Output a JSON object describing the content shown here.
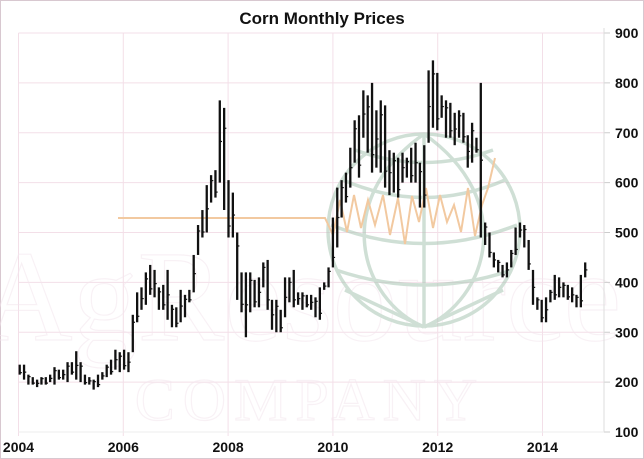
{
  "chart_data": {
    "type": "ohlc-bar",
    "title": "Corn Monthly Prices",
    "xlabel": "",
    "ylabel": "",
    "frequency": "monthly",
    "start": "2004-01",
    "x_ticks": [
      "2004",
      "2006",
      "2008",
      "2010",
      "2012",
      "2014"
    ],
    "x_range": [
      2004,
      2015.2
    ],
    "y_ticks": [
      "100",
      "200",
      "300",
      "400",
      "500",
      "600",
      "700",
      "800",
      "900"
    ],
    "ylim": [
      100,
      900
    ],
    "y_axis_side": "right",
    "grid": true,
    "high": [
      235,
      235,
      215,
      210,
      205,
      210,
      210,
      215,
      230,
      225,
      225,
      240,
      240,
      262,
      240,
      215,
      210,
      205,
      215,
      220,
      235,
      245,
      265,
      260,
      265,
      260,
      335,
      380,
      390,
      420,
      435,
      425,
      390,
      395,
      425,
      355,
      350,
      385,
      375,
      385,
      455,
      515,
      545,
      595,
      615,
      625,
      765,
      750,
      605,
      580,
      500,
      420,
      420,
      420,
      405,
      410,
      440,
      445,
      365,
      365,
      345,
      410,
      410,
      425,
      380,
      380,
      375,
      375,
      370,
      390,
      400,
      430,
      530,
      590,
      605,
      620,
      670,
      725,
      735,
      785,
      775,
      800,
      745,
      765,
      755,
      665,
      660,
      650,
      660,
      650,
      670,
      680,
      640,
      675,
      825,
      845,
      820,
      775,
      765,
      760,
      740,
      745,
      740,
      695,
      720,
      690,
      800,
      520,
      500,
      460,
      445,
      435,
      440,
      465,
      510,
      520,
      515,
      485,
      425,
      370,
      365,
      370,
      385,
      415,
      410,
      400,
      395,
      390,
      375,
      415,
      440
    ],
    "low": [
      215,
      205,
      195,
      195,
      190,
      195,
      195,
      200,
      195,
      205,
      205,
      200,
      215,
      205,
      200,
      195,
      195,
      185,
      190,
      205,
      210,
      215,
      225,
      220,
      225,
      220,
      260,
      320,
      345,
      355,
      375,
      370,
      345,
      345,
      325,
      310,
      310,
      320,
      330,
      360,
      380,
      455,
      490,
      500,
      560,
      570,
      600,
      545,
      490,
      490,
      365,
      340,
      290,
      340,
      350,
      350,
      390,
      345,
      305,
      300,
      300,
      330,
      360,
      350,
      355,
      345,
      350,
      345,
      330,
      325,
      385,
      390,
      430,
      470,
      530,
      560,
      590,
      640,
      610,
      690,
      660,
      620,
      630,
      620,
      590,
      575,
      580,
      570,
      600,
      610,
      600,
      600,
      550,
      550,
      680,
      710,
      705,
      730,
      690,
      690,
      675,
      690,
      680,
      630,
      640,
      660,
      490,
      475,
      450,
      430,
      420,
      410,
      410,
      430,
      455,
      490,
      470,
      425,
      355,
      345,
      320,
      320,
      360,
      365,
      370,
      370,
      365,
      360,
      350,
      350,
      410
    ]
  },
  "watermark": {
    "company_name": "AgResource",
    "company_suffix": "COMPANY"
  },
  "colors": {
    "bars": "#111111",
    "grid": "#f3dfe8",
    "globe": "#a9c6b4",
    "orange_line": "#f2c9a0",
    "frame": "#d8c8d0"
  }
}
